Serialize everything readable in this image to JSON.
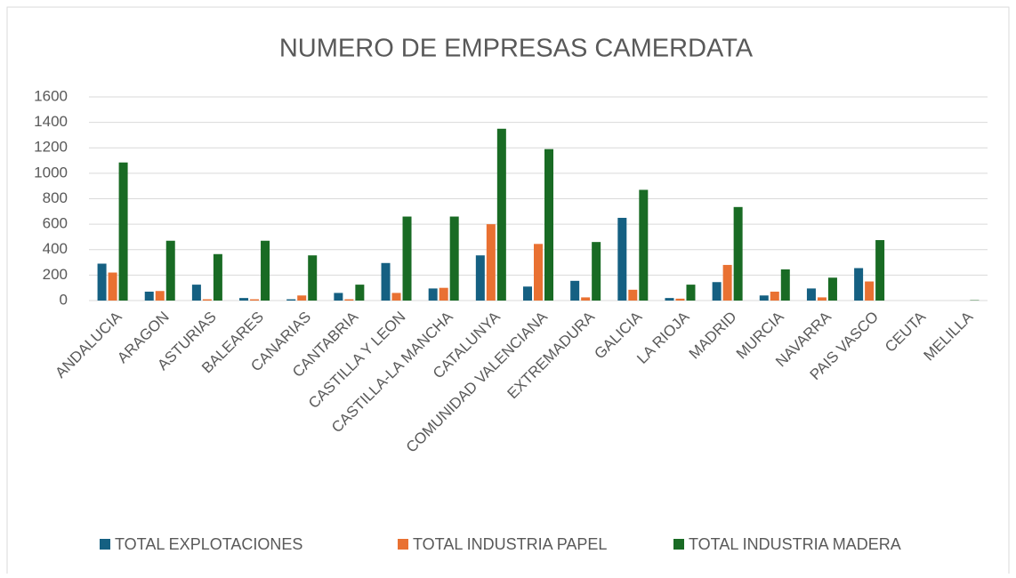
{
  "chart_data": {
    "type": "bar",
    "title": "NUMERO DE EMPRESAS CAMERDATA",
    "categories": [
      "ANDALUCIA",
      "ARAGON",
      "ASTURIAS",
      "BALEARES",
      "CANARIAS",
      "CANTABRIA",
      "CASTILLA Y LEON",
      "CASTILLA-LA MANCHA",
      "CATALUNYA",
      "COMUNIDAD VALENCIANA",
      "EXTREMADURA",
      "GALICIA",
      "LA RIOJA",
      "MADRID",
      "MURCIA",
      "NAVARRA",
      "PAIS VASCO",
      "CEUTA",
      "MELILLA"
    ],
    "series": [
      {
        "name": "TOTAL EXPLOTACIONES",
        "color": "#156082",
        "values": [
          290,
          70,
          125,
          20,
          10,
          60,
          295,
          95,
          355,
          110,
          155,
          650,
          20,
          145,
          40,
          95,
          255,
          0,
          0
        ]
      },
      {
        "name": "TOTAL INDUSTRIA PAPEL",
        "color": "#e97132",
        "values": [
          220,
          75,
          10,
          10,
          40,
          10,
          60,
          100,
          600,
          445,
          25,
          85,
          15,
          280,
          70,
          25,
          150,
          0,
          0
        ]
      },
      {
        "name": "TOTAL INDUSTRIA MADERA",
        "color": "#196b24",
        "values": [
          1085,
          470,
          365,
          470,
          355,
          125,
          660,
          660,
          1350,
          1190,
          460,
          870,
          125,
          735,
          245,
          180,
          475,
          0,
          3
        ]
      }
    ],
    "ylim": [
      0,
      1600
    ],
    "yticks": [
      0,
      200,
      400,
      600,
      800,
      1000,
      1200,
      1400,
      1600
    ],
    "grid": true,
    "legend": "bottom"
  }
}
